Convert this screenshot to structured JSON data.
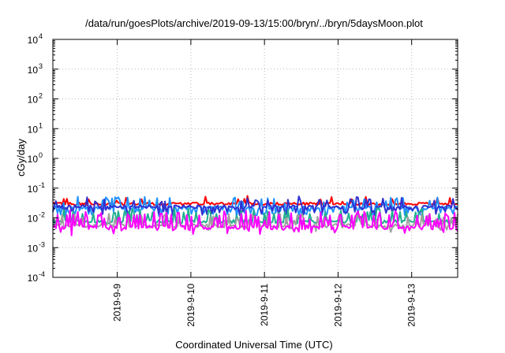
{
  "chart_data": {
    "type": "line",
    "title": "/data/run/goesPlots/archive/2019-09-13/15:00/bryn/../bryn/5daysMoon.plot",
    "xlabel": "Coordinated Universal Time (UTC)",
    "ylabel": "cGy/day",
    "yscale": "log",
    "ylim": [
      0.0001,
      10000
    ],
    "y_ticks": [
      {
        "base": "10",
        "exp": "-4",
        "value": 0.0001
      },
      {
        "base": "10",
        "exp": "-3",
        "value": 0.001
      },
      {
        "base": "10",
        "exp": "-2",
        "value": 0.01
      },
      {
        "base": "10",
        "exp": "-1",
        "value": 0.1
      },
      {
        "base": "10",
        "exp": "0",
        "value": 1
      },
      {
        "base": "10",
        "exp": "1",
        "value": 10
      },
      {
        "base": "10",
        "exp": "2",
        "value": 100
      },
      {
        "base": "10",
        "exp": "3",
        "value": 1000
      },
      {
        "base": "10",
        "exp": "4",
        "value": 10000
      }
    ],
    "xlim": [
      "2019-09-08 03:00",
      "2019-09-13 15:00"
    ],
    "x_ticks": [
      {
        "label": "2019-9-9",
        "value": "2019-09-09 00:00"
      },
      {
        "label": "2019-9-10",
        "value": "2019-09-10 00:00"
      },
      {
        "label": "2019-9-11",
        "value": "2019-09-11 00:00"
      },
      {
        "label": "2019-9-12",
        "value": "2019-09-12 00:00"
      },
      {
        "label": "2019-9-13",
        "value": "2019-09-13 00:00"
      }
    ],
    "grid": true,
    "legend": "none",
    "series": [
      {
        "color": "#ff0000",
        "base": 0.03,
        "jitter": 0.1,
        "spike_prob": 0.1,
        "spike_factor": 1.7,
        "dip_prob": 0.0,
        "dip_factor": 1.0
      },
      {
        "color": "#1e90ff",
        "base": 0.022,
        "jitter": 0.14,
        "spike_prob": 0.14,
        "spike_factor": 2.2,
        "dip_prob": 0.25,
        "dip_factor": 0.55
      },
      {
        "color": "#3030d0",
        "base": 0.024,
        "jitter": 0.12,
        "spike_prob": 0.1,
        "spike_factor": 2.0,
        "dip_prob": 0.18,
        "dip_factor": 0.55
      },
      {
        "color": "#20b090",
        "base": 0.0075,
        "jitter": 0.14,
        "spike_prob": 0.22,
        "spike_factor": 2.6,
        "dip_prob": 0.0,
        "dip_factor": 1.0
      },
      {
        "color": "#a0a0a0",
        "base": 0.0055,
        "jitter": 0.15,
        "spike_prob": 0.2,
        "spike_factor": 2.4,
        "dip_prob": 0.05,
        "dip_factor": 0.7
      },
      {
        "color": "#ff00ff",
        "base": 0.0048,
        "jitter": 0.16,
        "spike_prob": 0.3,
        "spike_factor": 3.2,
        "dip_prob": 0.06,
        "dip_factor": 0.6
      }
    ]
  }
}
